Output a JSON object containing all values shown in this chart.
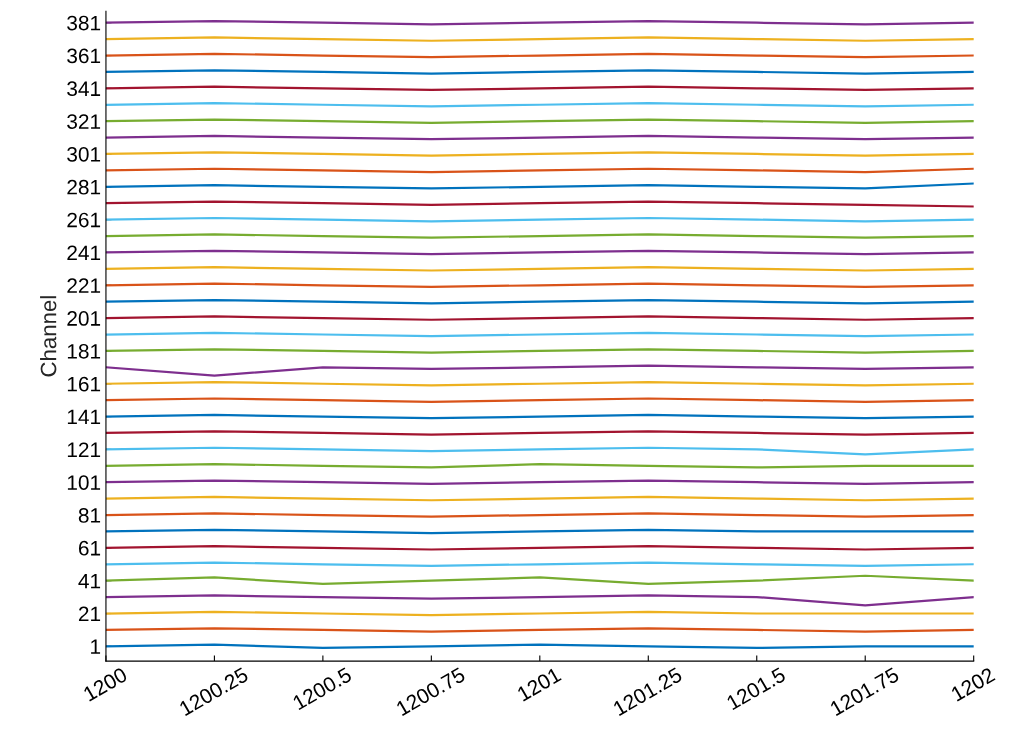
{
  "chart_data": {
    "type": "line",
    "ylabel": "Channel",
    "x": [
      1200,
      1200.25,
      1200.5,
      1200.75,
      1201,
      1201.25,
      1201.5,
      1201.75,
      1202
    ],
    "xlim": [
      1200,
      1202
    ],
    "xticks": [
      1200,
      1200.25,
      1200.5,
      1200.75,
      1201,
      1201.25,
      1201.5,
      1201.75,
      1202
    ],
    "ylim": [
      -8,
      388
    ],
    "yticks": [
      1,
      21,
      41,
      61,
      81,
      101,
      121,
      141,
      161,
      181,
      201,
      221,
      241,
      261,
      281,
      301,
      321,
      341,
      361,
      381
    ],
    "grid": false,
    "marker": "none",
    "line_style": "solid",
    "series": [
      {
        "color": "#0072bd",
        "values": [
          1,
          2,
          0,
          1,
          2,
          1,
          0,
          1,
          1
        ]
      },
      {
        "color": "#d95319",
        "values": [
          11,
          12,
          11,
          10,
          11,
          12,
          11,
          10,
          11
        ]
      },
      {
        "color": "#edb120",
        "values": [
          21,
          22,
          21,
          20,
          21,
          22,
          21,
          21,
          21
        ]
      },
      {
        "color": "#7e2f8e",
        "values": [
          31,
          32,
          31,
          30,
          31,
          32,
          31,
          26,
          31
        ]
      },
      {
        "color": "#77ac30",
        "values": [
          41,
          43,
          39,
          41,
          43,
          39,
          41,
          44,
          41
        ]
      },
      {
        "color": "#4dbeee",
        "values": [
          51,
          52,
          51,
          50,
          51,
          52,
          51,
          50,
          51
        ]
      },
      {
        "color": "#a2142f",
        "values": [
          61,
          62,
          61,
          60,
          61,
          62,
          61,
          60,
          61
        ]
      },
      {
        "color": "#0072bd",
        "values": [
          71,
          72,
          71,
          70,
          71,
          72,
          71,
          71,
          71
        ]
      },
      {
        "color": "#d95319",
        "values": [
          81,
          82,
          81,
          80,
          81,
          82,
          81,
          80,
          81
        ]
      },
      {
        "color": "#edb120",
        "values": [
          91,
          92,
          91,
          90,
          91,
          92,
          91,
          90,
          91
        ]
      },
      {
        "color": "#7e2f8e",
        "values": [
          101,
          102,
          101,
          100,
          101,
          102,
          101,
          100,
          101
        ]
      },
      {
        "color": "#77ac30",
        "values": [
          111,
          112,
          111,
          110,
          112,
          111,
          110,
          111,
          111
        ]
      },
      {
        "color": "#4dbeee",
        "values": [
          121,
          122,
          121,
          120,
          121,
          122,
          121,
          118,
          121
        ]
      },
      {
        "color": "#a2142f",
        "values": [
          131,
          132,
          131,
          130,
          131,
          132,
          131,
          130,
          131
        ]
      },
      {
        "color": "#0072bd",
        "values": [
          141,
          142,
          141,
          140,
          141,
          142,
          141,
          140,
          141
        ]
      },
      {
        "color": "#d95319",
        "values": [
          151,
          152,
          151,
          150,
          151,
          152,
          151,
          150,
          151
        ]
      },
      {
        "color": "#edb120",
        "values": [
          161,
          162,
          161,
          160,
          161,
          162,
          161,
          160,
          161
        ]
      },
      {
        "color": "#7e2f8e",
        "values": [
          171,
          166,
          171,
          170,
          171,
          172,
          171,
          170,
          171
        ]
      },
      {
        "color": "#77ac30",
        "values": [
          181,
          182,
          181,
          180,
          181,
          182,
          181,
          180,
          181
        ]
      },
      {
        "color": "#4dbeee",
        "values": [
          191,
          192,
          191,
          190,
          191,
          192,
          191,
          190,
          191
        ]
      },
      {
        "color": "#a2142f",
        "values": [
          201,
          202,
          201,
          200,
          201,
          202,
          201,
          200,
          201
        ]
      },
      {
        "color": "#0072bd",
        "values": [
          211,
          212,
          211,
          210,
          211,
          212,
          211,
          210,
          211
        ]
      },
      {
        "color": "#d95319",
        "values": [
          221,
          222,
          221,
          220,
          221,
          222,
          221,
          220,
          221
        ]
      },
      {
        "color": "#edb120",
        "values": [
          231,
          232,
          231,
          230,
          231,
          232,
          231,
          230,
          231
        ]
      },
      {
        "color": "#7e2f8e",
        "values": [
          241,
          242,
          241,
          240,
          241,
          242,
          241,
          240,
          241
        ]
      },
      {
        "color": "#77ac30",
        "values": [
          251,
          252,
          251,
          250,
          251,
          252,
          251,
          250,
          251
        ]
      },
      {
        "color": "#4dbeee",
        "values": [
          261,
          262,
          261,
          260,
          261,
          262,
          261,
          260,
          261
        ]
      },
      {
        "color": "#a2142f",
        "values": [
          271,
          272,
          271,
          270,
          271,
          272,
          271,
          270,
          269
        ]
      },
      {
        "color": "#0072bd",
        "values": [
          281,
          282,
          281,
          280,
          281,
          282,
          281,
          280,
          283
        ]
      },
      {
        "color": "#d95319",
        "values": [
          291,
          292,
          291,
          290,
          291,
          292,
          291,
          290,
          292
        ]
      },
      {
        "color": "#edb120",
        "values": [
          301,
          302,
          301,
          300,
          301,
          302,
          301,
          300,
          301
        ]
      },
      {
        "color": "#7e2f8e",
        "values": [
          311,
          312,
          311,
          310,
          311,
          312,
          311,
          310,
          311
        ]
      },
      {
        "color": "#77ac30",
        "values": [
          321,
          322,
          321,
          320,
          321,
          322,
          321,
          320,
          321
        ]
      },
      {
        "color": "#4dbeee",
        "values": [
          331,
          332,
          331,
          330,
          331,
          332,
          331,
          330,
          331
        ]
      },
      {
        "color": "#a2142f",
        "values": [
          341,
          342,
          341,
          340,
          341,
          342,
          341,
          340,
          341
        ]
      },
      {
        "color": "#0072bd",
        "values": [
          351,
          352,
          351,
          350,
          351,
          352,
          351,
          350,
          351
        ]
      },
      {
        "color": "#d95319",
        "values": [
          361,
          362,
          361,
          360,
          361,
          362,
          361,
          360,
          361
        ]
      },
      {
        "color": "#edb120",
        "values": [
          371,
          372,
          371,
          370,
          371,
          372,
          371,
          370,
          371
        ]
      },
      {
        "color": "#7e2f8e",
        "values": [
          381,
          382,
          381,
          380,
          381,
          382,
          381,
          380,
          381
        ]
      }
    ]
  }
}
